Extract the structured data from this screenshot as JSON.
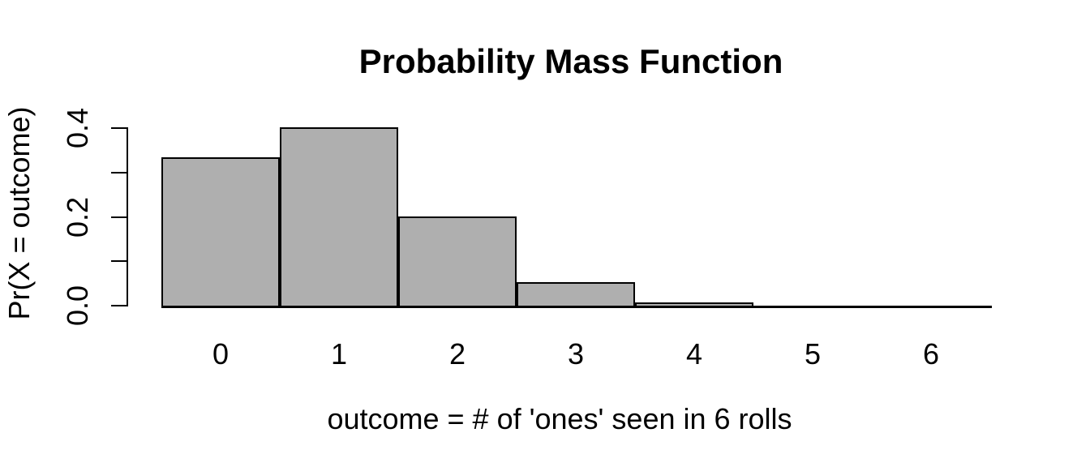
{
  "chart_data": {
    "type": "bar",
    "title": "Probability Mass Function",
    "xlabel": "outcome = # of 'ones' seen in 6 rolls",
    "ylabel": "Pr(X = outcome)",
    "categories": [
      "0",
      "1",
      "2",
      "3",
      "4",
      "5",
      "6"
    ],
    "values": [
      0.334898,
      0.401878,
      0.200939,
      0.053584,
      0.008037,
      0.000643,
      2.14e-05
    ],
    "series_name": "Pr(X = outcome)",
    "xlim": [
      -0.5,
      6.5
    ],
    "ylim": [
      0,
      0.4
    ],
    "y_ticks": [
      {
        "value": 0.0,
        "label": "0.0"
      },
      {
        "value": 0.1,
        "label": ""
      },
      {
        "value": 0.2,
        "label": "0.2"
      },
      {
        "value": 0.3,
        "label": ""
      },
      {
        "value": 0.4,
        "label": "0.4"
      }
    ],
    "grid": false,
    "legend": false,
    "bar_fill": "#AFAFAF",
    "bar_border": "#000000",
    "axis_color": "#000000",
    "text_color": "#000000",
    "background": "#FFFFFF"
  }
}
